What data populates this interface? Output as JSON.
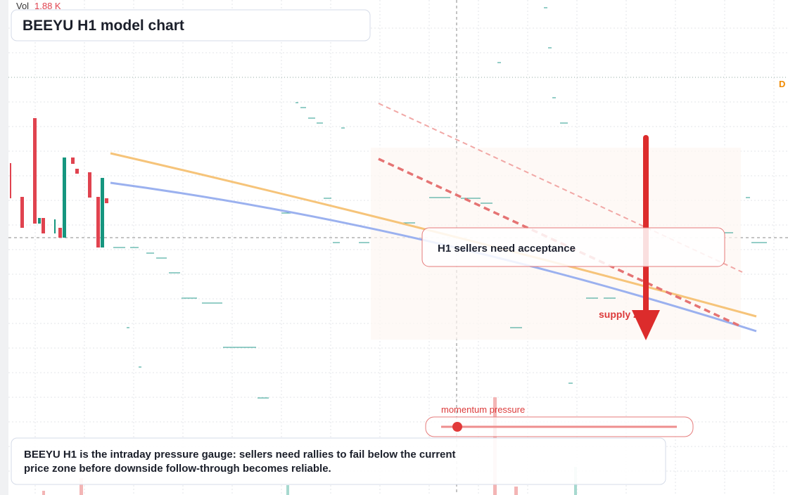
{
  "header": {
    "volume_label": "Vol",
    "volume_value": "1.88 K",
    "title": "BEEYU H1 model chart",
    "edge_marker": "D"
  },
  "annotations": {
    "callout": "H1 sellers need acceptance",
    "zone_label": "supply zone",
    "gauge_label": "momentum pressure"
  },
  "footer": {
    "text": "BEEYU H1 is the intraday pressure gauge: sellers need rallies to fail below the current price zone before downside follow-through becomes reliable."
  }
}
